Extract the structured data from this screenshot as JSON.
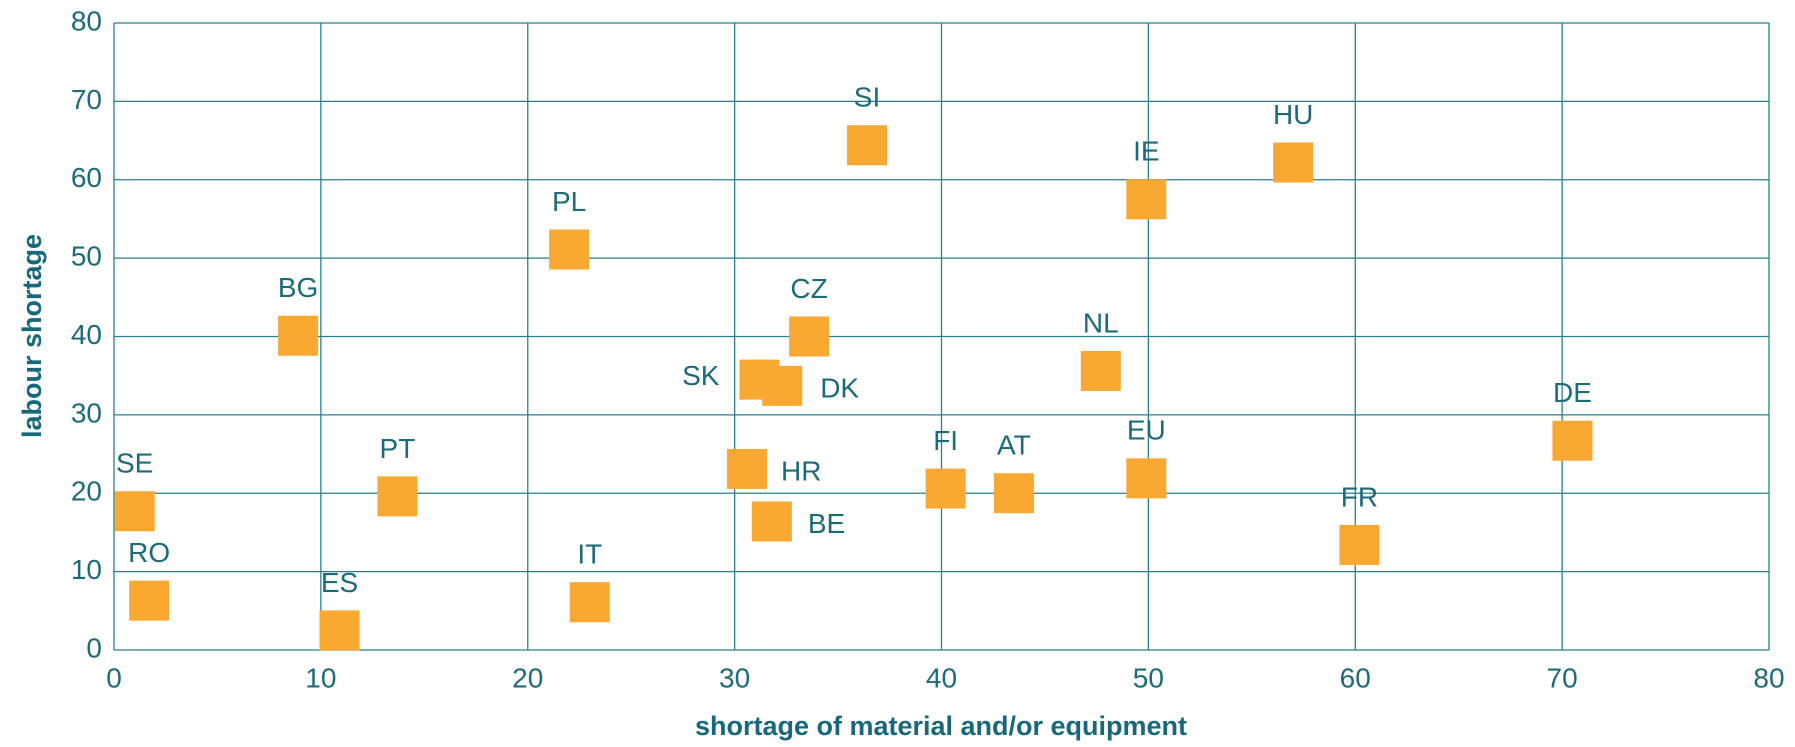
{
  "chart_data": {
    "type": "scatter",
    "xlabel": "shortage of material and/or equipment",
    "ylabel": "labour shortage",
    "point_labels": [
      "SE",
      "RO",
      "ES",
      "PT",
      "BG",
      "PL",
      "IT",
      "SI",
      "SK",
      "DK",
      "CZ",
      "HR",
      "BE",
      "FI",
      "AT",
      "NL",
      "EU",
      "IE",
      "HU",
      "FR",
      "DE"
    ],
    "x": [
      1.0,
      1.7,
      10.9,
      13.7,
      8.9,
      22.0,
      23.0,
      36.4,
      31.2,
      32.3,
      33.6,
      30.6,
      31.8,
      40.2,
      43.5,
      47.7,
      49.9,
      49.9,
      57.0,
      60.2,
      70.5
    ],
    "values": [
      17.7,
      6.3,
      2.5,
      19.6,
      40.1,
      51.1,
      6.1,
      64.4,
      34.5,
      33.7,
      40.0,
      23.1,
      16.4,
      20.6,
      20.0,
      35.6,
      21.9,
      57.5,
      62.2,
      13.4,
      26.7
    ],
    "color": "#f9a932",
    "xlim": [
      0,
      80
    ],
    "xticks": [
      0,
      10,
      20,
      30,
      40,
      50,
      60,
      70,
      80
    ],
    "ylim": [
      0,
      80
    ],
    "yticks": [
      0,
      10,
      20,
      30,
      40,
      50,
      60,
      70,
      80
    ],
    "grid": true
  }
}
